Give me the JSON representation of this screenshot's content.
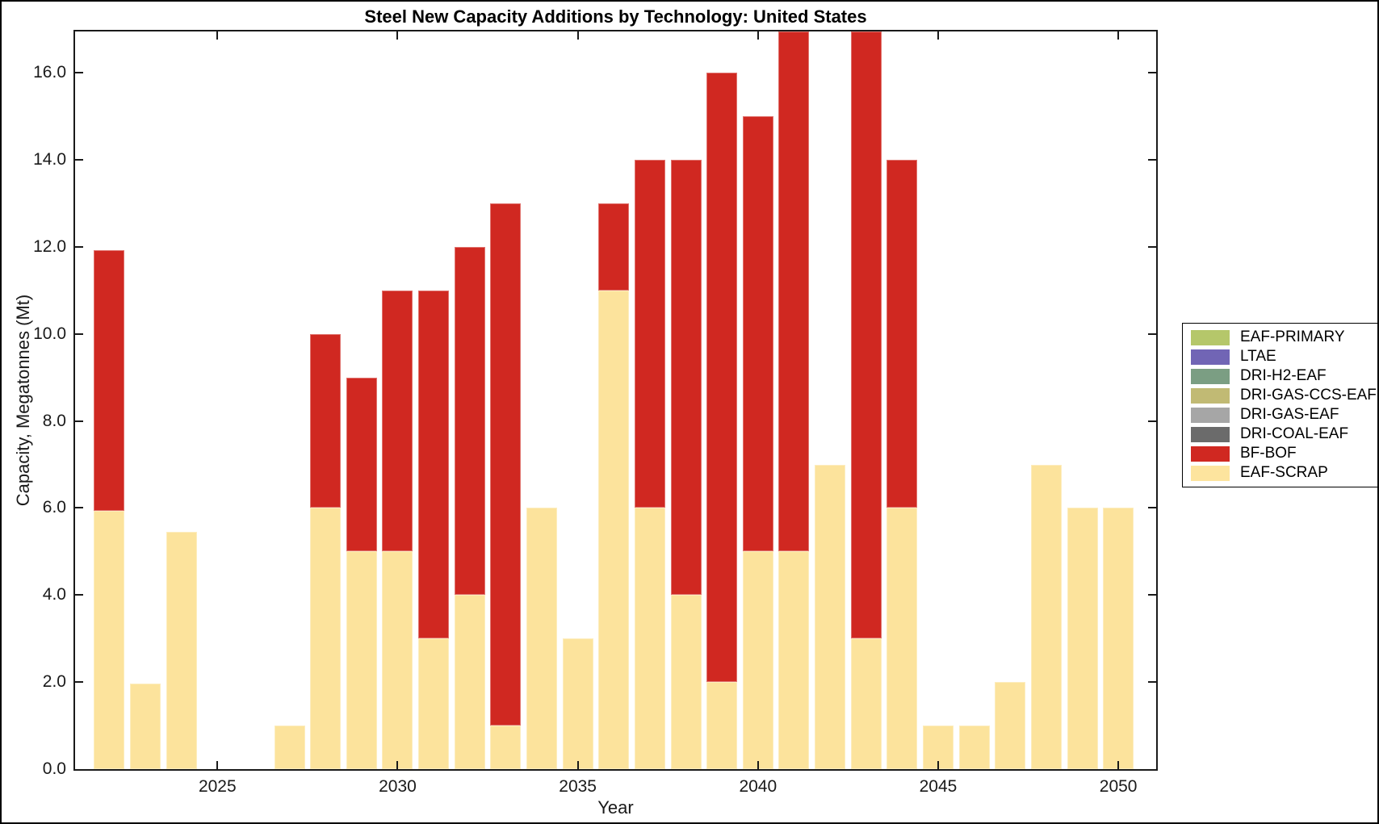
{
  "chart_data": {
    "type": "bar",
    "stacked": true,
    "title": "Steel New Capacity Additions by Technology: United States",
    "xlabel": "Year",
    "ylabel": "Capacity, Megatonnes (Mt)",
    "xlim": [
      2021.05,
      2051.05
    ],
    "ylim": [
      0,
      16.95
    ],
    "grid": false,
    "x_ticks": [
      2025,
      2030,
      2035,
      2040,
      2045,
      2050
    ],
    "x_tick_labels": [
      "2025",
      "2030",
      "2035",
      "2040",
      "2045",
      "2050"
    ],
    "y_ticks": [
      0,
      2,
      4,
      6,
      8,
      10,
      12,
      14,
      16
    ],
    "y_tick_labels": [
      "0.0",
      "2.0",
      "4.0",
      "6.0",
      "8.0",
      "10.0",
      "12.0",
      "14.0",
      "16.0"
    ],
    "categories": [
      2022,
      2023,
      2024,
      2025,
      2026,
      2027,
      2028,
      2029,
      2030,
      2031,
      2032,
      2033,
      2034,
      2035,
      2036,
      2037,
      2038,
      2039,
      2040,
      2041,
      2042,
      2043,
      2044,
      2045,
      2046,
      2047,
      2048,
      2049,
      2050
    ],
    "series": [
      {
        "name": "EAF-SCRAP",
        "color": "#fce39c",
        "values": [
          5.93,
          1.97,
          5.45,
          0,
          0,
          1,
          6,
          5,
          5,
          3,
          4,
          1,
          6,
          3,
          11,
          6,
          4,
          2,
          5,
          5,
          7,
          3,
          6,
          1,
          1,
          2,
          7,
          6,
          6
        ]
      },
      {
        "name": "BF-BOF",
        "color": "#d02821",
        "values": [
          6,
          0,
          0,
          0,
          0,
          0,
          4,
          4,
          6,
          8,
          8,
          12,
          0,
          0,
          2,
          8,
          10,
          14,
          10,
          13,
          0,
          15,
          8,
          0,
          0,
          0,
          0,
          0,
          0
        ]
      }
    ],
    "clipped_years": [
      2041,
      2043
    ],
    "clip_note": "Bars for 2041 and 2043 extend beyond the top of the y-axis and are clipped at the axes boundary.",
    "legend": {
      "position": "right-outside",
      "entries": [
        {
          "label": "EAF-PRIMARY",
          "color": "#b5c76a"
        },
        {
          "label": "LTAE",
          "color": "#7165b5"
        },
        {
          "label": "DRI-H2-EAF",
          "color": "#7b9e83"
        },
        {
          "label": "DRI-GAS-CCS-EAF",
          "color": "#c1ba74"
        },
        {
          "label": "DRI-GAS-EAF",
          "color": "#a6a6a6"
        },
        {
          "label": "DRI-COAL-EAF",
          "color": "#6b6b6b"
        },
        {
          "label": "BF-BOF",
          "color": "#d02821"
        },
        {
          "label": "EAF-SCRAP",
          "color": "#fde49e"
        }
      ]
    }
  }
}
